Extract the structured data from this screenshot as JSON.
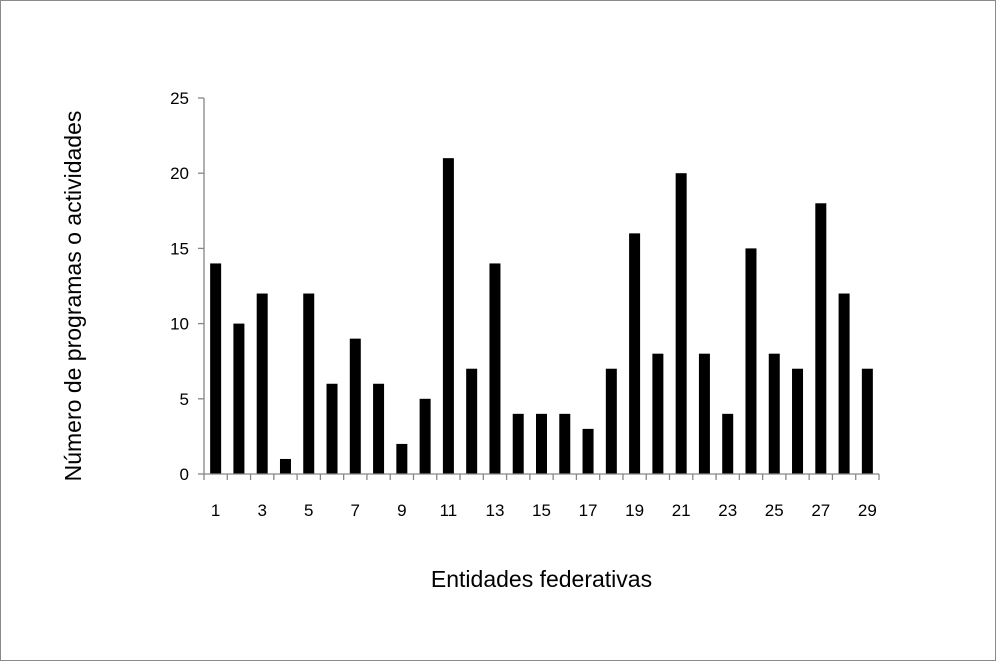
{
  "chart_data": {
    "type": "bar",
    "title": "",
    "xlabel": "Entidades federativas",
    "ylabel": "Número de programas o actividades",
    "categories": [
      "1",
      "2",
      "3",
      "4",
      "5",
      "6",
      "7",
      "8",
      "9",
      "10",
      "11",
      "12",
      "13",
      "14",
      "15",
      "16",
      "17",
      "18",
      "19",
      "20",
      "21",
      "22",
      "23",
      "24",
      "25",
      "26",
      "27",
      "28",
      "29"
    ],
    "x_tick_labels": [
      "1",
      "3",
      "5",
      "7",
      "9",
      "11",
      "13",
      "15",
      "17",
      "19",
      "21",
      "23",
      "25",
      "27",
      "29"
    ],
    "y_ticks": [
      0,
      5,
      10,
      15,
      20,
      25
    ],
    "ylim": [
      0,
      25
    ],
    "values": [
      14,
      10,
      12,
      1,
      12,
      6,
      9,
      6,
      2,
      5,
      21,
      7,
      14,
      4,
      4,
      4,
      3,
      7,
      16,
      8,
      20,
      8,
      4,
      15,
      8,
      7,
      18,
      12,
      7
    ],
    "bar_color": "#000000",
    "axis_color": "#868686",
    "grid": false,
    "legend": "none"
  }
}
